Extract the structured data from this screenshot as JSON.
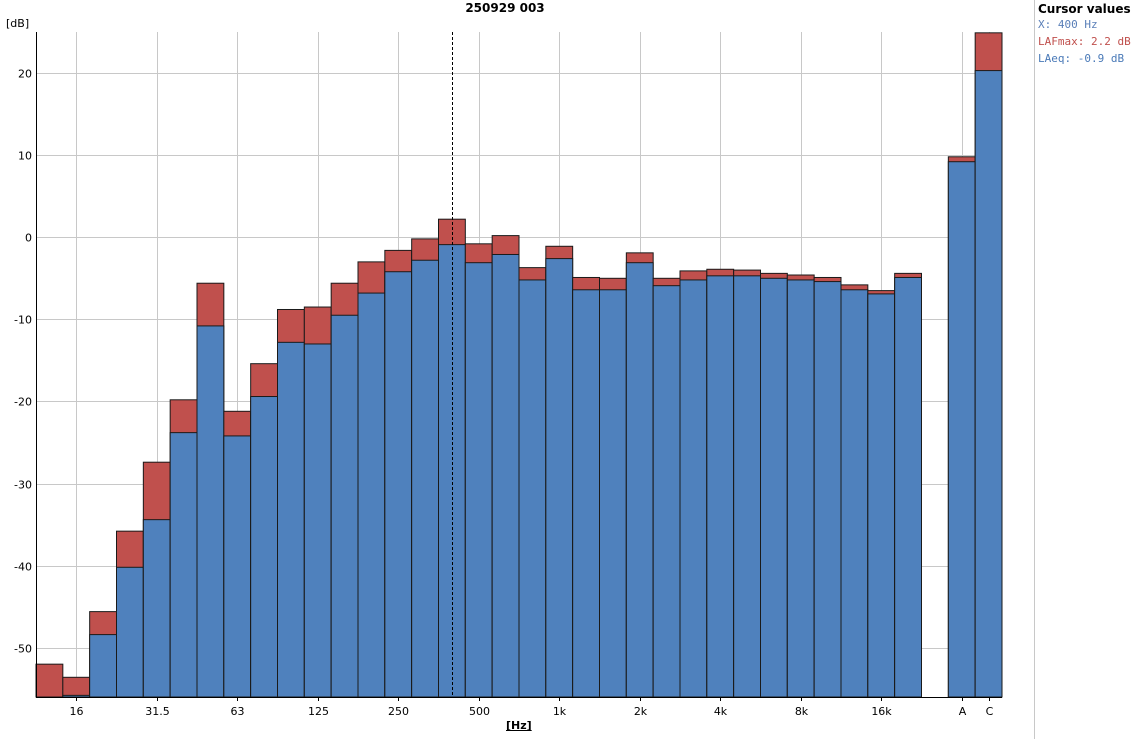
{
  "header": {
    "title": "250929 003"
  },
  "cursor_panel": {
    "title": "Cursor values",
    "x": "X: 400 Hz",
    "lafmax": "LAFmax: 2.2 dB",
    "laeq": "LAeq: -0.9 dB"
  },
  "colors": {
    "lafmax": "#c0504d",
    "laeq": "#4f81bd",
    "grid": "#c8c8c8",
    "cursor_x_text": "#5a7fb8"
  },
  "chart_data": {
    "type": "bar",
    "title": "250929 003",
    "ylabel": "[dB]",
    "xlabel": "[Hz]",
    "ylim": [
      -56,
      25
    ],
    "yticks": [
      -50,
      -40,
      -30,
      -20,
      -10,
      0,
      10,
      20
    ],
    "grid": true,
    "legend": "none",
    "cursor": {
      "category": "400",
      "label": "400 Hz"
    },
    "categories": [
      "12.5",
      "16",
      "20",
      "25",
      "31.5",
      "40",
      "50",
      "63",
      "80",
      "100",
      "125",
      "160",
      "200",
      "250",
      "315",
      "400",
      "500",
      "630",
      "800",
      "1k",
      "1.25k",
      "1.6k",
      "2k",
      "2.5k",
      "3.15k",
      "4k",
      "5k",
      "6.3k",
      "8k",
      "10k",
      "12.5k",
      "16k",
      "20k",
      "",
      "A",
      "C"
    ],
    "tick_labels": [
      "",
      "16",
      "",
      "",
      "31.5",
      "",
      "",
      "63",
      "",
      "",
      "125",
      "",
      "",
      "250",
      "",
      "",
      "500",
      "",
      "",
      "1k",
      "",
      "",
      "2k",
      "",
      "",
      "4k",
      "",
      "",
      "8k",
      "",
      "",
      "16k",
      "",
      "",
      "A",
      "C"
    ],
    "series": [
      {
        "name": "LAFmax",
        "values": [
          -52.0,
          -53.6,
          -45.6,
          -35.8,
          -27.4,
          -19.8,
          -5.6,
          -21.2,
          -15.4,
          -8.8,
          -8.5,
          -5.6,
          -3.0,
          -1.6,
          -0.2,
          2.2,
          -0.8,
          0.2,
          -3.7,
          -1.1,
          -4.9,
          -5.0,
          -1.9,
          -5.0,
          -4.1,
          -3.9,
          -4.0,
          -4.4,
          -4.6,
          -4.9,
          -5.8,
          -6.5,
          -4.4,
          null,
          9.8,
          24.9
        ]
      },
      {
        "name": "LAeq",
        "values": [
          -56.0,
          -55.8,
          -48.4,
          -40.2,
          -34.4,
          -23.8,
          -10.8,
          -24.2,
          -19.4,
          -12.8,
          -13.0,
          -9.5,
          -6.8,
          -4.2,
          -2.8,
          -0.9,
          -3.1,
          -2.1,
          -5.2,
          -2.6,
          -6.4,
          -6.4,
          -3.1,
          -5.9,
          -5.2,
          -4.7,
          -4.7,
          -5.0,
          -5.2,
          -5.4,
          -6.4,
          -6.9,
          -4.9,
          null,
          9.2,
          20.3
        ]
      }
    ]
  }
}
